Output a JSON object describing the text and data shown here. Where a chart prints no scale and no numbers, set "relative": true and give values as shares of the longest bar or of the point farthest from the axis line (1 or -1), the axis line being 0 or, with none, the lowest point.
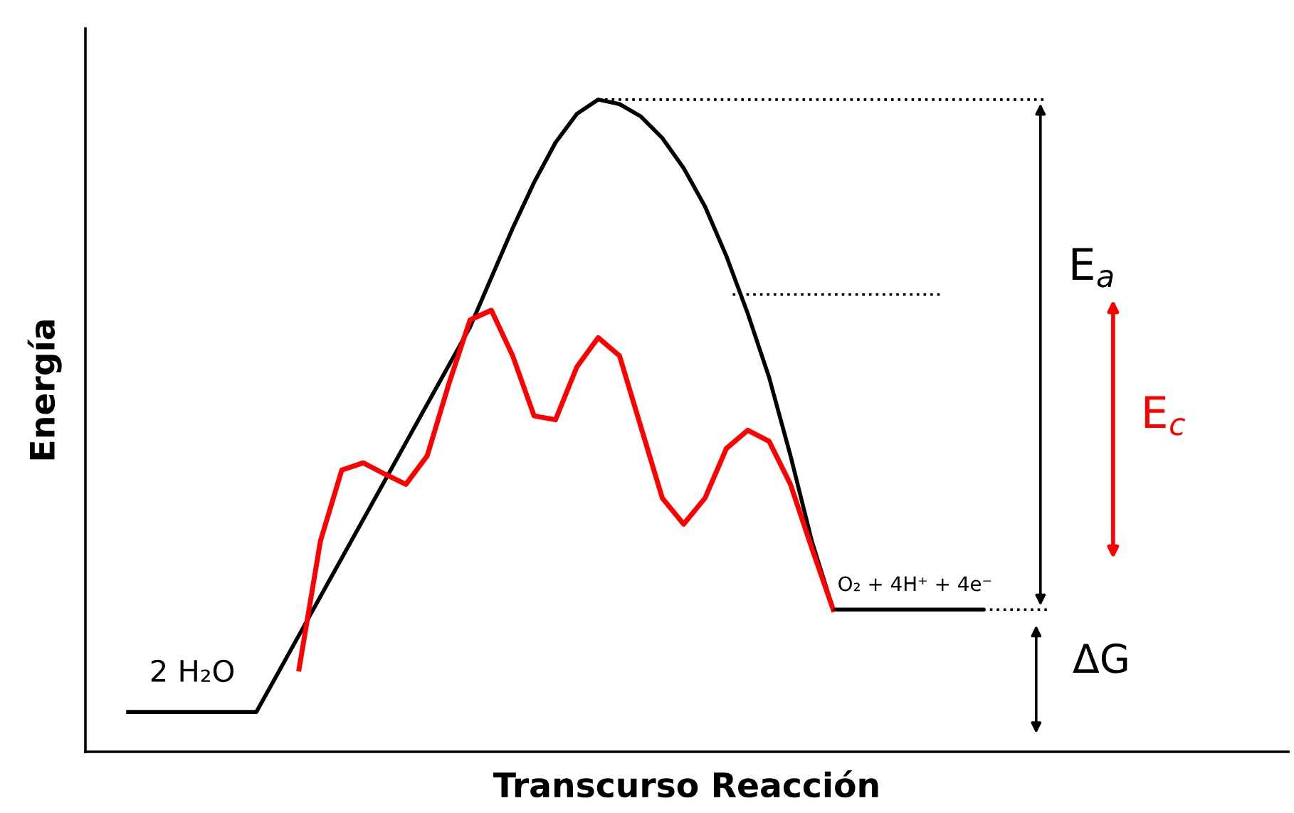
{
  "chart_data": {
    "type": "line",
    "relative": true,
    "xlabel": "Transcurso Reacción",
    "ylabel": "Energía",
    "categories": [
      null,
      null,
      null,
      null,
      null,
      null,
      null,
      null,
      null,
      null,
      null,
      null,
      null,
      null,
      null,
      null,
      null,
      null,
      null,
      null,
      null,
      null,
      null,
      null,
      null,
      null,
      null,
      null,
      null,
      null,
      null,
      null,
      null,
      null,
      null,
      null,
      null,
      null,
      null,
      null,
      null
    ],
    "series": [
      {
        "color": "#000000",
        "values": [
          0.061,
          0.061,
          0.061,
          0.061,
          0.061,
          0.061,
          0.061,
          0.12,
          0.179,
          0.238,
          0.297,
          0.356,
          0.415,
          0.474,
          0.533,
          0.592,
          0.651,
          0.727,
          0.803,
          0.873,
          0.934,
          0.978,
          1.0,
          0.993,
          0.974,
          0.941,
          0.895,
          0.836,
          0.76,
          0.672,
          0.574,
          0.454,
          0.323,
          0.218,
          0.218,
          0.218,
          0.218,
          0.218,
          0.218,
          0.218,
          0.218
        ]
      },
      {
        "color": "#ff0000",
        "values": [
          null,
          null,
          null,
          null,
          null,
          null,
          null,
          null,
          0.127,
          0.323,
          0.432,
          0.443,
          0.426,
          0.41,
          0.454,
          0.563,
          0.662,
          0.677,
          0.607,
          0.515,
          0.509,
          0.59,
          0.635,
          0.607,
          0.498,
          0.389,
          0.349,
          0.389,
          0.465,
          0.493,
          0.476,
          0.41,
          0.312,
          0.218,
          null,
          null,
          null,
          null,
          null,
          null,
          null
        ]
      }
    ],
    "ref_lines": [
      {
        "axis": "y",
        "value": 1.0,
        "color": "#000000",
        "line_style": "dotted"
      },
      {
        "axis": "y",
        "value": 0.701,
        "color": "#000000",
        "line_style": "dotted"
      },
      {
        "axis": "y",
        "value": 0.218,
        "color": "#000000",
        "line_style": "dotted"
      }
    ],
    "annotations": [
      "2 H₂O",
      "O₂ + 4H⁺ + 4e⁻",
      "E$_{a}$",
      "E$_{c}$",
      "ΔG"
    ],
    "legend": false,
    "marker": "none",
    "line_style": "solid"
  }
}
